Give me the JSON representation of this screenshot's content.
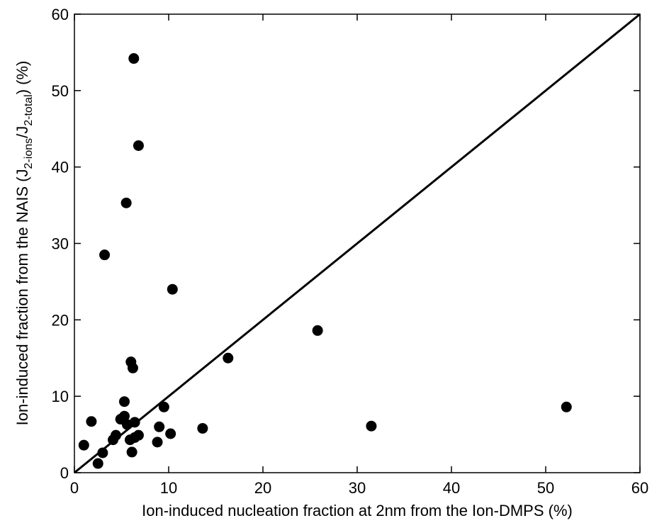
{
  "chart_data": {
    "type": "scatter",
    "title": "",
    "xlabel": "Ion-induced nucleation fraction at 2nm from the Ion-DMPS (%)",
    "ylabel": {
      "prefix": "Ion-induced fraction from the NAIS (J",
      "sub1": "2-ions",
      "mid": "/J",
      "sub2": "2-total",
      "suffix": ") (%)"
    },
    "xlim": [
      0,
      60
    ],
    "ylim": [
      0,
      60
    ],
    "xticks": [
      0,
      10,
      20,
      30,
      40,
      50,
      60
    ],
    "yticks": [
      0,
      10,
      20,
      30,
      40,
      50,
      60
    ],
    "xtick_labels": [
      "0",
      "10",
      "20",
      "30",
      "40",
      "50",
      "60"
    ],
    "ytick_labels": [
      "0",
      "10",
      "20",
      "30",
      "40",
      "50",
      "60"
    ],
    "grid": false,
    "reference_line": {
      "x": [
        0,
        60
      ],
      "y": [
        0,
        60
      ]
    },
    "points": [
      {
        "x": 6.3,
        "y": 54.2
      },
      {
        "x": 6.8,
        "y": 42.8
      },
      {
        "x": 5.5,
        "y": 35.3
      },
      {
        "x": 3.2,
        "y": 28.5
      },
      {
        "x": 10.4,
        "y": 24.0
      },
      {
        "x": 25.8,
        "y": 18.6
      },
      {
        "x": 16.3,
        "y": 15.0
      },
      {
        "x": 6.0,
        "y": 14.5
      },
      {
        "x": 6.2,
        "y": 13.7
      },
      {
        "x": 5.3,
        "y": 9.3
      },
      {
        "x": 9.5,
        "y": 8.6
      },
      {
        "x": 52.2,
        "y": 8.6
      },
      {
        "x": 5.3,
        "y": 7.4
      },
      {
        "x": 1.8,
        "y": 6.7
      },
      {
        "x": 4.9,
        "y": 7.0
      },
      {
        "x": 6.4,
        "y": 6.6
      },
      {
        "x": 5.6,
        "y": 6.3
      },
      {
        "x": 31.5,
        "y": 6.1
      },
      {
        "x": 9.0,
        "y": 6.0
      },
      {
        "x": 13.6,
        "y": 5.8
      },
      {
        "x": 10.2,
        "y": 5.1
      },
      {
        "x": 6.8,
        "y": 4.9
      },
      {
        "x": 4.4,
        "y": 4.9
      },
      {
        "x": 6.4,
        "y": 4.6
      },
      {
        "x": 4.1,
        "y": 4.3
      },
      {
        "x": 5.9,
        "y": 4.3
      },
      {
        "x": 8.8,
        "y": 4.0
      },
      {
        "x": 1.0,
        "y": 3.6
      },
      {
        "x": 3.0,
        "y": 2.6
      },
      {
        "x": 6.1,
        "y": 2.7
      },
      {
        "x": 2.5,
        "y": 1.2
      }
    ]
  }
}
